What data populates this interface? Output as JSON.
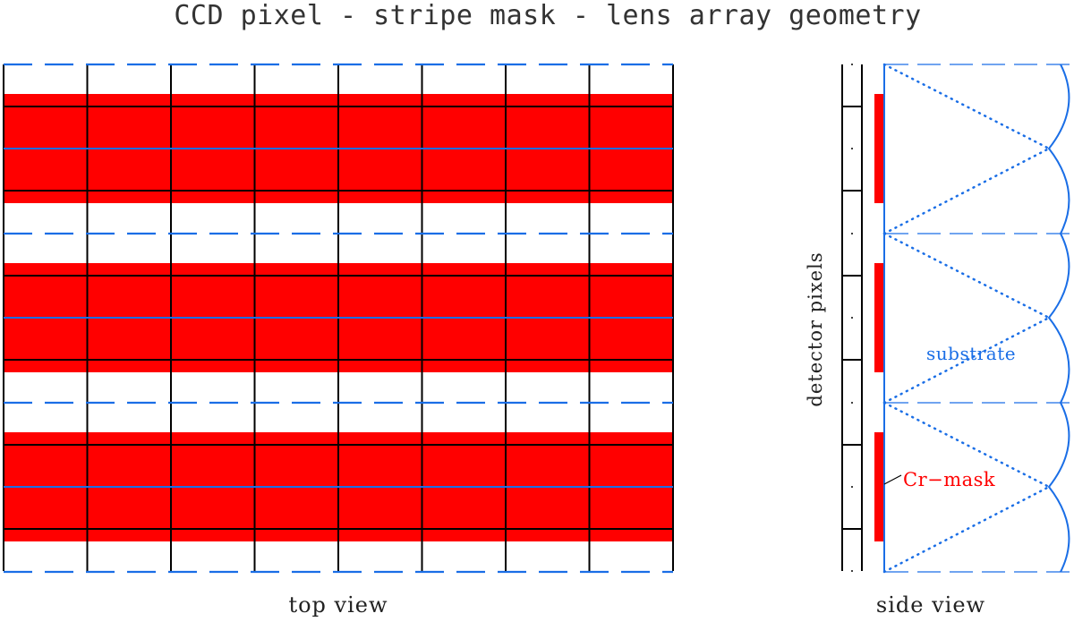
{
  "title": "CCD pixel - stripe mask - lens array geometry",
  "top_view_label": "top view",
  "side_view_label": "side view",
  "detector_label": "detector pixels",
  "substrate_label": "substrate",
  "mask_label": "Cr−mask",
  "colors": {
    "mask": "#ff0000",
    "lens": "#1a6ee6",
    "grid": "#000000",
    "background": "#ffffff"
  },
  "icons": {
    "mask_stripe": "red-stripe",
    "lens_boundary": "blue-dashed-line",
    "lens_axis": "blue-solid-line",
    "lens_surface": "blue-arc",
    "ray": "blue-dotted-line"
  }
}
